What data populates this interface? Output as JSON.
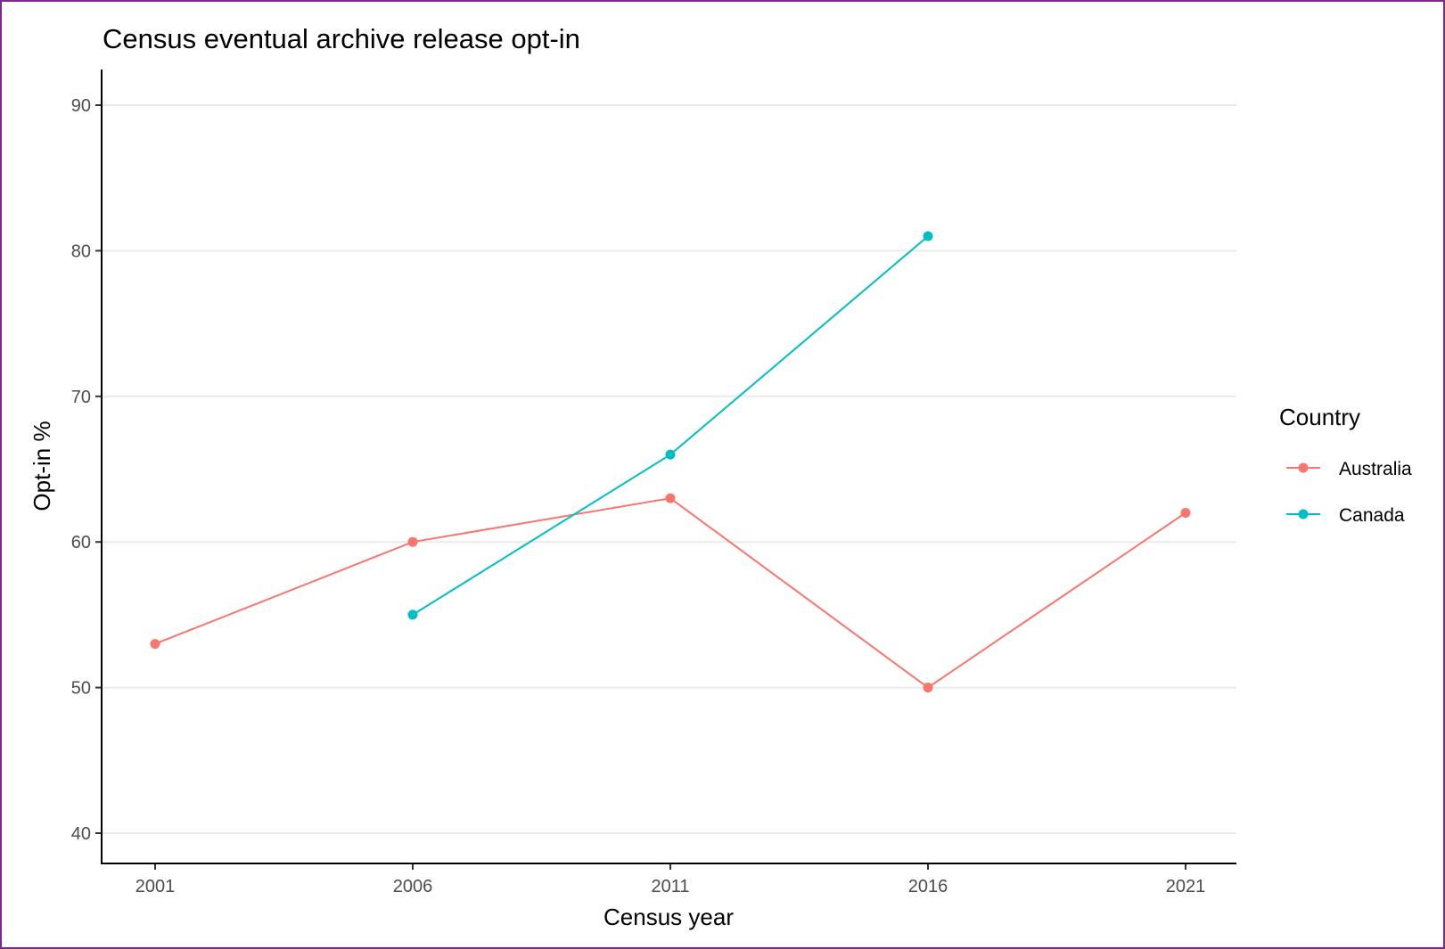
{
  "chart_data": {
    "type": "line",
    "title": "Census eventual archive release opt-in",
    "xlabel": "Census year",
    "ylabel": "Opt-in %",
    "x_ticks": [
      "2001",
      "2006",
      "2011",
      "2016",
      "2021"
    ],
    "y_ticks": [
      "40",
      "50",
      "60",
      "70",
      "80",
      "90"
    ],
    "xlim": [
      2001,
      2021
    ],
    "ylim": [
      40,
      90
    ],
    "grid": "horizontal major gridlines",
    "legend": {
      "title": "Country",
      "placement": "right"
    },
    "series": [
      {
        "name": "Australia",
        "color": "#f8766d",
        "x": [
          2001,
          2006,
          2011,
          2016,
          2021
        ],
        "y": [
          53,
          60,
          63,
          50,
          62
        ]
      },
      {
        "name": "Canada",
        "color": "#00bfc4",
        "x": [
          2006,
          2011,
          2016
        ],
        "y": [
          55,
          66,
          81
        ]
      }
    ]
  }
}
